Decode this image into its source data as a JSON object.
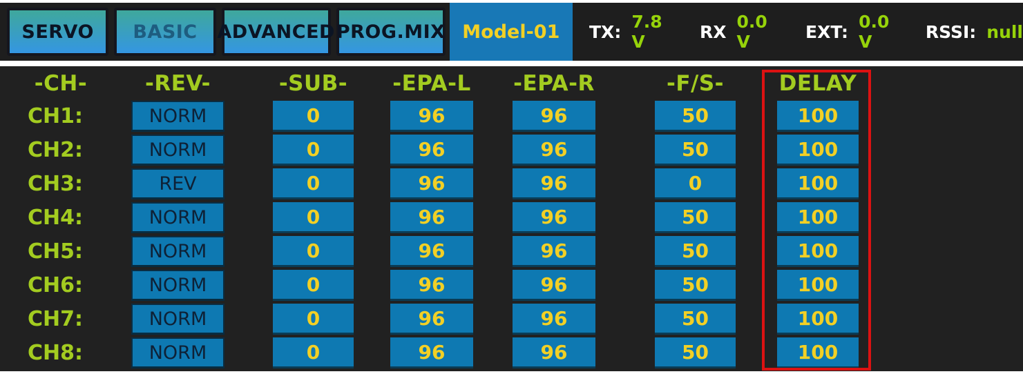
{
  "topbar": {
    "tabs": [
      {
        "label": "SERVO",
        "state": "normal"
      },
      {
        "label": "BASIC",
        "state": "muted"
      },
      {
        "label": "ADVANCED",
        "state": "normal"
      },
      {
        "label": "PROG.MIX",
        "state": "normal"
      }
    ],
    "model_name": "Model-01",
    "status": [
      {
        "label": "TX:",
        "value": "7.8 V"
      },
      {
        "label": "RX",
        "value": "0.0 V"
      },
      {
        "label": "EXT:",
        "value": "0.0 V"
      },
      {
        "label": "RSSI:",
        "value": "null"
      }
    ]
  },
  "table": {
    "headers": [
      "-CH-",
      "-REV-",
      "-SUB-",
      "-EPA-L",
      "-EPA-R",
      "-F/S-",
      "DELAY"
    ],
    "highlighted_column": "DELAY",
    "rows": [
      {
        "ch": "CH1:",
        "rev": "NORM",
        "sub": "0",
        "epa_l": "96",
        "epa_r": "96",
        "fs": "50",
        "delay": "100"
      },
      {
        "ch": "CH2:",
        "rev": "NORM",
        "sub": "0",
        "epa_l": "96",
        "epa_r": "96",
        "fs": "50",
        "delay": "100"
      },
      {
        "ch": "CH3:",
        "rev": "REV",
        "sub": "0",
        "epa_l": "96",
        "epa_r": "96",
        "fs": "0",
        "delay": "100"
      },
      {
        "ch": "CH4:",
        "rev": "NORM",
        "sub": "0",
        "epa_l": "96",
        "epa_r": "96",
        "fs": "50",
        "delay": "100"
      },
      {
        "ch": "CH5:",
        "rev": "NORM",
        "sub": "0",
        "epa_l": "96",
        "epa_r": "96",
        "fs": "50",
        "delay": "100"
      },
      {
        "ch": "CH6:",
        "rev": "NORM",
        "sub": "0",
        "epa_l": "96",
        "epa_r": "96",
        "fs": "50",
        "delay": "100"
      },
      {
        "ch": "CH7:",
        "rev": "NORM",
        "sub": "0",
        "epa_l": "96",
        "epa_r": "96",
        "fs": "50",
        "delay": "100"
      },
      {
        "ch": "CH8:",
        "rev": "NORM",
        "sub": "0",
        "epa_l": "96",
        "epa_r": "96",
        "fs": "50",
        "delay": "100"
      }
    ]
  },
  "colors": {
    "background_dark": "#1e1e1e",
    "panel_dark": "#212121",
    "cell_blue": "#0e79b2",
    "model_badge_blue": "#1878b6",
    "accent_green": "#a3cc20",
    "status_value_green": "#96d30a",
    "value_yellow": "#f2d025",
    "highlight_red": "#dc1212",
    "tab_gradient_top": "#3fa89c",
    "tab_gradient_bottom": "#3496e2"
  }
}
